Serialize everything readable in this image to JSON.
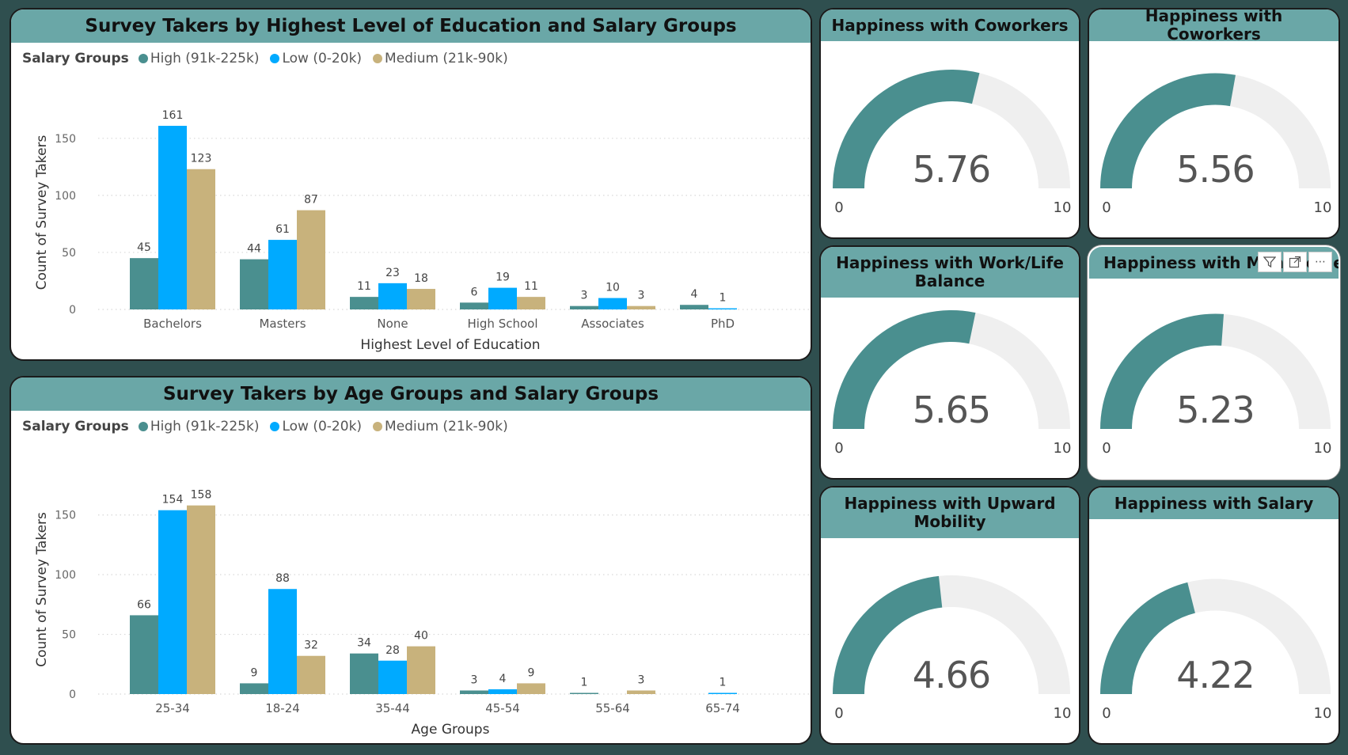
{
  "colors": {
    "high": "#4a8f8f",
    "low": "#00aaff",
    "medium": "#c8b27c",
    "gauge_fill": "#4a8f8f",
    "gauge_bg": "#efefef",
    "header": "#6aa7a7"
  },
  "legend": {
    "title": "Salary Groups",
    "items": [
      {
        "label": "High (91k-225k)",
        "color": "#4a8f8f"
      },
      {
        "label": "Low (0-20k)",
        "color": "#00aaff"
      },
      {
        "label": "Medium (21k-90k)",
        "color": "#c8b27c"
      }
    ]
  },
  "chart_data": [
    {
      "type": "bar",
      "title": "Survey Takers by Highest Level of Education and Salary Groups",
      "xlabel": "Highest Level of Education",
      "ylabel": "Count of Survey Takers",
      "ylim": [
        0,
        170
      ],
      "yticks": [
        0,
        50,
        100,
        150
      ],
      "categories": [
        "Bachelors",
        "Masters",
        "None",
        "High School",
        "Associates",
        "PhD"
      ],
      "series": [
        {
          "name": "High (91k-225k)",
          "values": [
            45,
            44,
            11,
            6,
            3,
            4
          ]
        },
        {
          "name": "Low (0-20k)",
          "values": [
            161,
            61,
            23,
            19,
            10,
            1
          ]
        },
        {
          "name": "Medium (21k-90k)",
          "values": [
            123,
            87,
            18,
            11,
            3,
            null
          ]
        }
      ],
      "legend_position": "top-left",
      "grid": true
    },
    {
      "type": "bar",
      "title": "Survey Takers by Age Groups and Salary Groups",
      "xlabel": "Age Groups",
      "ylabel": "Count of Survey Takers",
      "ylim": [
        0,
        175
      ],
      "yticks": [
        0,
        50,
        100,
        150
      ],
      "categories": [
        "25-34",
        "18-24",
        "35-44",
        "45-54",
        "55-64",
        "65-74"
      ],
      "series": [
        {
          "name": "High (91k-225k)",
          "values": [
            66,
            9,
            34,
            3,
            1,
            null
          ]
        },
        {
          "name": "Low (0-20k)",
          "values": [
            154,
            88,
            28,
            4,
            null,
            1
          ]
        },
        {
          "name": "Medium (21k-90k)",
          "values": [
            158,
            32,
            40,
            9,
            3,
            null
          ]
        }
      ],
      "legend_position": "top-left",
      "grid": true
    }
  ],
  "gauges": [
    {
      "title": "Happiness with Coworkers",
      "value": 5.76,
      "value_label": "5.76",
      "min": 0,
      "max": 10,
      "min_label": "0",
      "max_label": "10"
    },
    {
      "title": "Happiness with Coworkers",
      "value": 5.56,
      "value_label": "5.56",
      "min": 0,
      "max": 10,
      "min_label": "0",
      "max_label": "10"
    },
    {
      "title": "Happiness with Work/Life Balance",
      "value": 5.65,
      "value_label": "5.65",
      "min": 0,
      "max": 10,
      "min_label": "0",
      "max_label": "10"
    },
    {
      "title": "Happiness with Management",
      "value": 5.23,
      "value_label": "5.23",
      "min": 0,
      "max": 10,
      "min_label": "0",
      "max_label": "10"
    },
    {
      "title": "Happiness with Upward Mobility",
      "value": 4.66,
      "value_label": "4.66",
      "min": 0,
      "max": 10,
      "min_label": "0",
      "max_label": "10"
    },
    {
      "title": "Happiness with Salary",
      "value": 4.22,
      "value_label": "4.22",
      "min": 0,
      "max": 10,
      "min_label": "0",
      "max_label": "10"
    }
  ],
  "toolbar": {
    "filter_icon": "filter-icon",
    "focus_icon": "focus-mode-icon",
    "more_icon": "more-options-icon",
    "more_glyph": "⋯"
  }
}
